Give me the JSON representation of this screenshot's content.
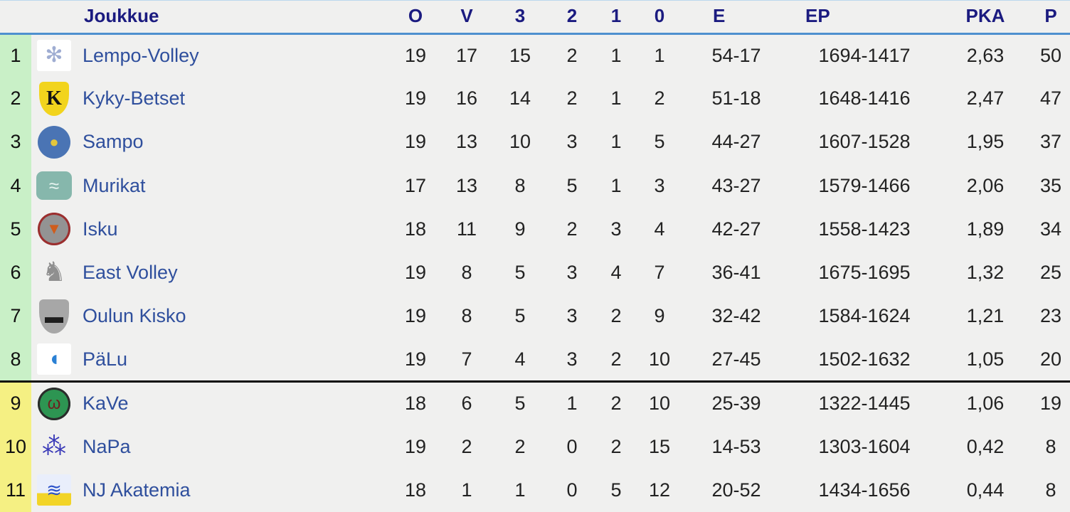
{
  "table": {
    "header": {
      "rank": "",
      "logo": "",
      "team": "Joukkue",
      "o": "O",
      "v": "V",
      "w3": "3",
      "w2": "2",
      "w1": "1",
      "w0": "0",
      "e": "E",
      "ep": "EP",
      "pka": "PKA",
      "p": "P"
    },
    "rows": [
      {
        "rank": "1",
        "team": "Lempo-Volley",
        "zone": "green",
        "separator": false,
        "o": "19",
        "v": "17",
        "w3": "15",
        "w2": "2",
        "w1": "1",
        "w0": "1",
        "e": "54-17",
        "ep": "1694-1417",
        "pka": "2,63",
        "p": "50",
        "logo": {
          "name": "lempo-volley-logo",
          "shape": "square",
          "bg": "#ffffff",
          "fg": "#9fadd2",
          "glyph": "✻",
          "size": 30
        }
      },
      {
        "rank": "2",
        "team": "Kyky-Betset",
        "zone": "green",
        "separator": false,
        "o": "19",
        "v": "16",
        "w3": "14",
        "w2": "2",
        "w1": "1",
        "w0": "2",
        "e": "51-18",
        "ep": "1648-1416",
        "pka": "2,47",
        "p": "47",
        "logo": {
          "name": "kyky-betset-logo",
          "shape": "shield",
          "bg": "#f2d41d",
          "fg": "#141414",
          "glyph": "K",
          "size": 28,
          "serif": true
        }
      },
      {
        "rank": "3",
        "team": "Sampo",
        "zone": "green",
        "separator": false,
        "o": "19",
        "v": "13",
        "w3": "10",
        "w2": "3",
        "w1": "1",
        "w0": "5",
        "e": "44-27",
        "ep": "1607-1528",
        "pka": "1,95",
        "p": "37",
        "logo": {
          "name": "sampo-logo",
          "shape": "circle",
          "bg": "#4a74b4",
          "fg": "#e3c63c",
          "glyph": "●",
          "size": 22
        }
      },
      {
        "rank": "4",
        "team": "Murikat",
        "zone": "green",
        "separator": false,
        "o": "17",
        "v": "13",
        "w3": "8",
        "w2": "5",
        "w1": "1",
        "w0": "3",
        "e": "43-27",
        "ep": "1579-1466",
        "pka": "2,06",
        "p": "35",
        "logo": {
          "name": "murikat-logo",
          "shape": "rounded",
          "bg": "#86b7ac",
          "fg": "#e6f3ef",
          "glyph": "≈",
          "size": 26
        }
      },
      {
        "rank": "5",
        "team": "Isku",
        "zone": "green",
        "separator": false,
        "o": "18",
        "v": "11",
        "w3": "9",
        "w2": "2",
        "w1": "3",
        "w0": "4",
        "e": "42-27",
        "ep": "1558-1423",
        "pka": "1,89",
        "p": "34",
        "logo": {
          "name": "isku-logo",
          "shape": "circle",
          "bg": "#939393",
          "fg": "#cf5d1c",
          "glyph": "▼",
          "size": 22,
          "ring": "#9c2e2e"
        }
      },
      {
        "rank": "6",
        "team": "East Volley",
        "zone": "green",
        "separator": false,
        "o": "19",
        "v": "8",
        "w3": "5",
        "w2": "3",
        "w1": "4",
        "w0": "7",
        "e": "36-41",
        "ep": "1675-1695",
        "pka": "1,32",
        "p": "25",
        "logo": {
          "name": "east-volley-logo",
          "shape": "square",
          "bg": "",
          "fg": "#8f8f8f",
          "glyph": "♞",
          "size": 38
        }
      },
      {
        "rank": "7",
        "team": "Oulun Kisko",
        "zone": "green",
        "separator": false,
        "o": "19",
        "v": "8",
        "w3": "5",
        "w2": "3",
        "w1": "2",
        "w0": "9",
        "e": "32-42",
        "ep": "1584-1624",
        "pka": "1,21",
        "p": "23",
        "logo": {
          "name": "oulun-kisko-logo",
          "shape": "shield",
          "bg": "#a7a7a7",
          "fg": "#1e1e1e",
          "glyph": "▬",
          "size": 26
        }
      },
      {
        "rank": "8",
        "team": "PäLu",
        "zone": "green",
        "separator": false,
        "o": "19",
        "v": "7",
        "w3": "4",
        "w2": "3",
        "w1": "2",
        "w0": "10",
        "e": "27-45",
        "ep": "1502-1632",
        "pka": "1,05",
        "p": "20",
        "logo": {
          "name": "palu-logo",
          "shape": "square",
          "bg": "#ffffff",
          "fg": "#2a80d4",
          "glyph": "◖",
          "size": 30
        }
      },
      {
        "rank": "9",
        "team": "KaVe",
        "zone": "yellow",
        "separator": true,
        "o": "18",
        "v": "6",
        "w3": "5",
        "w2": "1",
        "w1": "2",
        "w0": "10",
        "e": "25-39",
        "ep": "1322-1445",
        "pka": "1,06",
        "p": "19",
        "logo": {
          "name": "kave-logo",
          "shape": "circle",
          "bg": "#2d9552",
          "fg": "#6e1f1f",
          "glyph": "ω",
          "size": 24,
          "ring": "#2b2b2b"
        }
      },
      {
        "rank": "10",
        "team": "NaPa",
        "zone": "yellow",
        "separator": false,
        "o": "19",
        "v": "2",
        "w3": "2",
        "w2": "0",
        "w1": "2",
        "w0": "15",
        "e": "14-53",
        "ep": "1303-1604",
        "pka": "0,42",
        "p": "8",
        "logo": {
          "name": "napa-logo",
          "shape": "square",
          "bg": "",
          "fg": "#3a3ab8",
          "glyph": "⁂",
          "size": 34
        }
      },
      {
        "rank": "11",
        "team": "NJ Akatemia",
        "zone": "yellow",
        "separator": false,
        "o": "18",
        "v": "1",
        "w3": "1",
        "w2": "0",
        "w1": "5",
        "w0": "12",
        "e": "20-52",
        "ep": "1434-1656",
        "pka": "0,44",
        "p": "8",
        "logo": {
          "name": "nj-akatemia-logo",
          "shape": "square",
          "bg": "#e9eefb",
          "bg2": "#f2d427",
          "fg": "#2a50c8",
          "glyph": "≋",
          "size": 26
        }
      }
    ]
  },
  "colors": {
    "page_background": "#f0f0ef",
    "header_text": "#1b1b80",
    "header_underline_blue": "#4e90cf",
    "promotion_zone_green": "#c9f0c7",
    "relegation_zone_yellow": "#f5f083",
    "separator_black": "#0a0a0a",
    "team_link_blue": "#2f4f9d",
    "data_text": "#222222"
  }
}
